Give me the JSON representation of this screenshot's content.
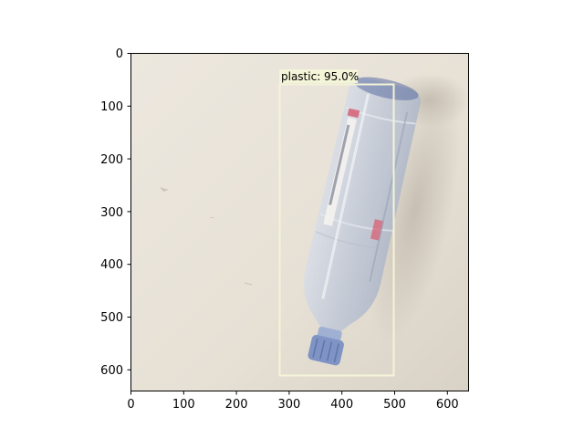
{
  "figure": {
    "x_ticks": [
      "0",
      "100",
      "200",
      "300",
      "400",
      "500",
      "600"
    ],
    "y_ticks": [
      "0",
      "100",
      "200",
      "300",
      "400",
      "500",
      "600"
    ],
    "detection": {
      "label": "plastic: 95.0%",
      "box_color": "#f4f4d8",
      "label_bg": "#f4f4d8"
    },
    "image_description_colors": {
      "wall_bg": "#e7e1d7",
      "bottle_body": "#c9d0dd",
      "bottle_cap": "#7f94c4",
      "bottle_label_red": "#d7667a",
      "shadow": "#cfc8bd"
    }
  }
}
